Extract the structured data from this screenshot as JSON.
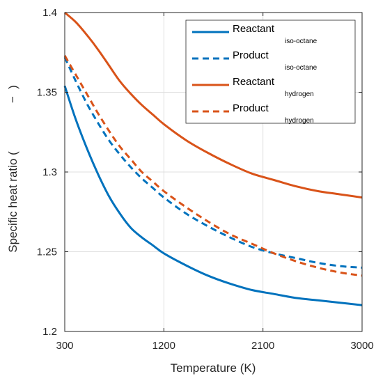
{
  "chart_data": {
    "type": "line",
    "title": "",
    "xlabel": "Temperature (K)",
    "ylabel": "Specific heat ratio (",
    "ylabel_unit": "−",
    "ylabel_close": ")",
    "xlim": [
      300,
      3000
    ],
    "ylim": [
      1.2,
      1.4
    ],
    "xticks": [
      300,
      1200,
      2100,
      3000
    ],
    "xtick_labels": [
      "300",
      "1200",
      "2100",
      "3000"
    ],
    "yticks": [
      1.2,
      1.25,
      1.3,
      1.35,
      1.4
    ],
    "ytick_labels": [
      "1.2",
      "1.25",
      "1.3",
      "1.35",
      "1.4"
    ],
    "grid": true,
    "legend_position": "top-right",
    "series": [
      {
        "name": "Reactant",
        "subscript": "iso-octane",
        "color": "#0072BD",
        "dash": "solid",
        "x": [
          300,
          400,
          500,
          600,
          700,
          800,
          900,
          1000,
          1100,
          1200,
          1400,
          1600,
          1800,
          2000,
          2200,
          2400,
          2600,
          2800,
          3000
        ],
        "y": [
          1.354,
          1.333,
          1.315,
          1.299,
          1.285,
          1.274,
          1.265,
          1.259,
          1.254,
          1.249,
          1.2415,
          1.235,
          1.23,
          1.226,
          1.2235,
          1.221,
          1.2195,
          1.218,
          1.2165
        ]
      },
      {
        "name": "Product",
        "subscript": "iso-octane",
        "color": "#0072BD",
        "dash": "dashed",
        "x": [
          300,
          400,
          500,
          600,
          700,
          800,
          900,
          1000,
          1100,
          1200,
          1400,
          1600,
          1800,
          2000,
          2200,
          2400,
          2600,
          2800,
          3000
        ],
        "y": [
          1.372,
          1.357,
          1.343,
          1.331,
          1.32,
          1.311,
          1.303,
          1.296,
          1.29,
          1.284,
          1.274,
          1.266,
          1.259,
          1.253,
          1.249,
          1.246,
          1.243,
          1.241,
          1.24
        ]
      },
      {
        "name": "Reactant",
        "subscript": "hydrogen",
        "color": "#D95319",
        "dash": "solid",
        "x": [
          300,
          400,
          500,
          600,
          700,
          800,
          900,
          1000,
          1100,
          1200,
          1400,
          1600,
          1800,
          2000,
          2200,
          2400,
          2600,
          2800,
          3000
        ],
        "y": [
          1.4,
          1.394,
          1.386,
          1.377,
          1.367,
          1.357,
          1.349,
          1.342,
          1.336,
          1.33,
          1.32,
          1.312,
          1.305,
          1.299,
          1.295,
          1.291,
          1.288,
          1.286,
          1.284
        ]
      },
      {
        "name": "Product",
        "subscript": "hydrogen",
        "color": "#D95319",
        "dash": "dashed",
        "x": [
          300,
          400,
          500,
          600,
          700,
          800,
          900,
          1000,
          1100,
          1200,
          1400,
          1600,
          1800,
          2000,
          2200,
          2400,
          2600,
          2800,
          3000
        ],
        "y": [
          1.373,
          1.361,
          1.349,
          1.337,
          1.326,
          1.316,
          1.308,
          1.3,
          1.294,
          1.288,
          1.278,
          1.269,
          1.261,
          1.255,
          1.249,
          1.244,
          1.24,
          1.237,
          1.235
        ]
      }
    ]
  }
}
